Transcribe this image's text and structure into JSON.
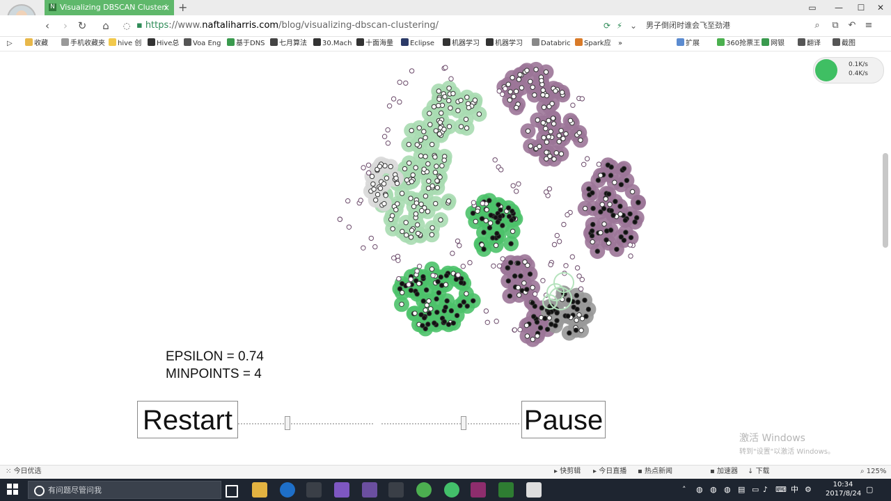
{
  "browser": {
    "tab_title": "Visualizing DBSCAN Clusteri",
    "tab_icon": "N",
    "url_https": "https",
    "url_sep": "://www.",
    "url_host": "naftaliharris.com",
    "url_path": "/blog/visualizing-dbscan-clustering/",
    "search_text": "男子倒闭时谁会飞至劲港",
    "bookmarks": [
      "收藏",
      "手机收藏夹",
      "hive 创",
      "Hive总",
      "Voa Eng",
      "基于DNS",
      "七月算法",
      "30.Mach",
      "十面海量",
      "Eclipse",
      "机器学习",
      "机器学习",
      "Databric",
      "Spark应"
    ],
    "bookmarks_right": [
      "扩展",
      "360抢票王",
      "网银",
      "翻译",
      "截图"
    ],
    "speed_up": "0.1K/s",
    "speed_down": "0.4K/s"
  },
  "page": {
    "epsilon_line": "EPSILON = 0.74",
    "minpoints_line": "MINPOINTS = 4",
    "restart_label": "Restart",
    "pause_label": "Pause"
  },
  "colors": {
    "green": "#4cc26a",
    "lightgreen": "#a9dcb1",
    "purple": "#9c7598",
    "gray": "#999999",
    "lightgray": "#d8d8d8"
  },
  "statusbar": {
    "left": "今日优选",
    "items": [
      "快剪辑",
      "今日直播",
      "热点新闻",
      "加速器",
      "下载",
      "125%"
    ]
  },
  "watermark": {
    "line1": "激活 Windows",
    "line2": "转到\"设置\"以激活 Windows。"
  },
  "taskbar": {
    "search_placeholder": "有问题尽管问我",
    "ime": "中",
    "time": "10:34",
    "date": "2017/8/24"
  }
}
